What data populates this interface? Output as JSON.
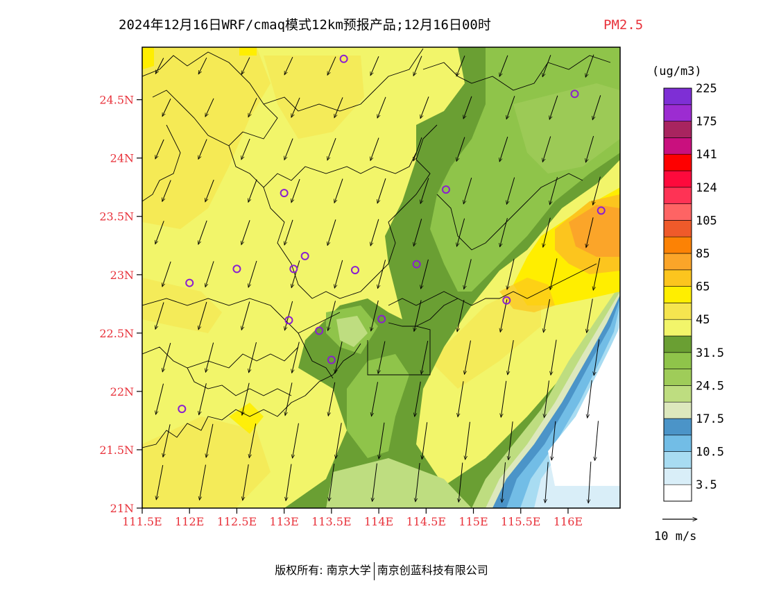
{
  "title": {
    "main": "2024年12月16日WRF/cmaq模式12km预报产品;12月16日00时",
    "variable": "PM2.5"
  },
  "map": {
    "lat_labels": [
      "24.5N",
      "24N",
      "23.5N",
      "23N",
      "22.5N",
      "22N",
      "21.5N",
      "21N"
    ],
    "lat_values": [
      24.5,
      24,
      23.5,
      23,
      22.5,
      22,
      21.5,
      21
    ],
    "lon_labels": [
      "111.5E",
      "112E",
      "112.5E",
      "113E",
      "113.5E",
      "114E",
      "114.5E",
      "115E",
      "115.5E",
      "116E"
    ],
    "lon_values": [
      111.5,
      112,
      112.5,
      113,
      113.5,
      114,
      114.5,
      115,
      115.5,
      116
    ],
    "lon_range": [
      111.5,
      116.55
    ],
    "lat_range": [
      21,
      24.95
    ],
    "stations": [
      {
        "lon": 113.63,
        "lat": 24.85
      },
      {
        "lon": 116.07,
        "lat": 24.55
      },
      {
        "lon": 114.71,
        "lat": 23.73
      },
      {
        "lon": 113.0,
        "lat": 23.7
      },
      {
        "lon": 116.35,
        "lat": 23.55
      },
      {
        "lon": 112.5,
        "lat": 23.05
      },
      {
        "lon": 112.0,
        "lat": 22.93
      },
      {
        "lon": 113.1,
        "lat": 23.05
      },
      {
        "lon": 113.22,
        "lat": 23.16
      },
      {
        "lon": 113.75,
        "lat": 23.04
      },
      {
        "lon": 114.4,
        "lat": 23.09
      },
      {
        "lon": 115.35,
        "lat": 22.78
      },
      {
        "lon": 113.05,
        "lat": 22.61
      },
      {
        "lon": 113.37,
        "lat": 22.52
      },
      {
        "lon": 114.03,
        "lat": 22.62
      },
      {
        "lon": 113.5,
        "lat": 22.27
      },
      {
        "lon": 111.92,
        "lat": 21.85
      }
    ]
  },
  "colorbar": {
    "unit": "(ug/m3)",
    "colors": [
      "#ffffff",
      "#d9eef8",
      "#a8dcf2",
      "#72bde6",
      "#4b94c8",
      "#dde8bd",
      "#bedd80",
      "#9fcc59",
      "#8fc44a",
      "#6a9f33",
      "#f2f56a",
      "#f5e54f",
      "#ffee00",
      "#fcc51e",
      "#fba529",
      "#fc8205",
      "#ef5a2a",
      "#fe6464",
      "#fe3355",
      "#fe0a3c",
      "#fe0000",
      "#c9107e",
      "#a8245f",
      "#9c2cd1",
      "#7e2fd5"
    ],
    "labels": [
      "3.5",
      "10.5",
      "17.5",
      "24.5",
      "31.5",
      "45",
      "65",
      "85",
      "105",
      "124",
      "141",
      "175",
      "225"
    ]
  },
  "wind": {
    "reference_label": "10 m/s"
  },
  "footer": {
    "copyright_prefix": "版权所有:",
    "org1": "南京大学",
    "org2": "南京创蓝科技有限公司"
  }
}
